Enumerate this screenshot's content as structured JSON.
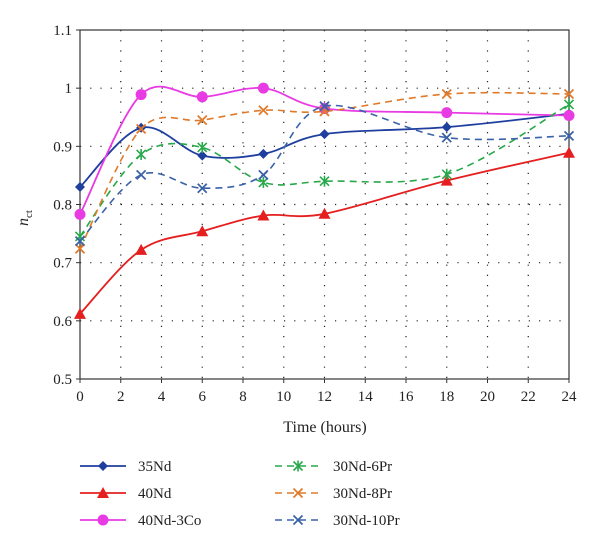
{
  "chart_data": {
    "type": "line",
    "title": "",
    "xlabel": "Time (hours)",
    "ylabel": {
      "main": "n",
      "sub": "ct"
    },
    "xlim": [
      0,
      24
    ],
    "ylim": [
      0.5,
      1.1
    ],
    "xticks": [
      0,
      2,
      4,
      6,
      8,
      10,
      12,
      14,
      16,
      18,
      20,
      22,
      24
    ],
    "yticks": [
      0.5,
      0.6,
      0.7,
      0.8,
      0.9,
      1,
      1.1
    ],
    "ytick_labels": [
      "0.5",
      "0.6",
      "0.7",
      "0.8",
      "0.9",
      "1",
      "1.1"
    ],
    "grid": "dotted",
    "legend_position": "bottom",
    "series": [
      {
        "name": "35Nd",
        "color": "#1f3f9f",
        "dash": "solid",
        "marker": "diamond",
        "x": [
          0,
          3,
          6,
          9,
          12,
          18,
          24
        ],
        "y": [
          0.83,
          0.932,
          0.884,
          0.887,
          0.921,
          0.933,
          0.956
        ]
      },
      {
        "name": "40Nd",
        "color": "#e51f1f",
        "dash": "solid",
        "marker": "triangle",
        "x": [
          0,
          3,
          6,
          9,
          12,
          18,
          24
        ],
        "y": [
          0.612,
          0.722,
          0.754,
          0.781,
          0.784,
          0.841,
          0.889
        ]
      },
      {
        "name": "40Nd-3Co",
        "color": "#e83be3",
        "dash": "solid",
        "marker": "circle",
        "x": [
          0,
          3,
          6,
          9,
          12,
          18,
          24
        ],
        "y": [
          0.783,
          0.989,
          0.985,
          1.0,
          0.965,
          0.958,
          0.953
        ]
      },
      {
        "name": "30Nd-6Pr",
        "color": "#27a84a",
        "dash": "dashed",
        "marker": "star",
        "x": [
          0,
          3,
          6,
          9,
          12,
          18,
          24
        ],
        "y": [
          0.745,
          0.886,
          0.898,
          0.838,
          0.84,
          0.852,
          0.972
        ]
      },
      {
        "name": "30Nd-8Pr",
        "color": "#e07a2a",
        "dash": "dashed",
        "marker": "x",
        "x": [
          0,
          3,
          6,
          9,
          12,
          18,
          24
        ],
        "y": [
          0.724,
          0.93,
          0.945,
          0.962,
          0.96,
          0.99,
          0.99
        ]
      },
      {
        "name": "30Nd-10Pr",
        "color": "#3a62a8",
        "dash": "dashed",
        "marker": "x",
        "x": [
          0,
          3,
          6,
          9,
          12,
          18,
          24
        ],
        "y": [
          0.737,
          0.851,
          0.828,
          0.851,
          0.969,
          0.915,
          0.918
        ]
      }
    ]
  }
}
